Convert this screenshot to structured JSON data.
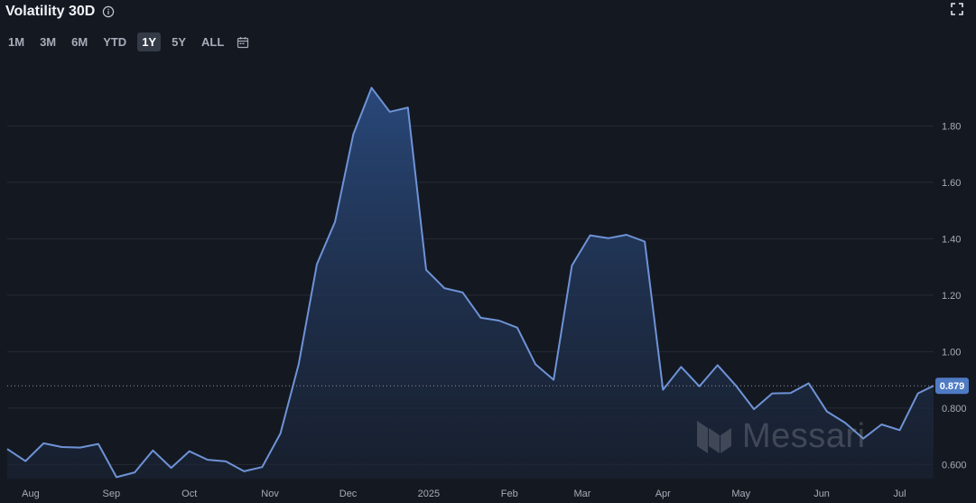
{
  "header": {
    "title": "Volatility 30D",
    "info_icon": "info-circle-icon",
    "expand_icon": "fullscreen-expand-icon"
  },
  "ranges": {
    "items": [
      "1M",
      "3M",
      "6M",
      "YTD",
      "1Y",
      "5Y",
      "ALL"
    ],
    "active": "1Y",
    "calendar_icon": "calendar-icon"
  },
  "watermark": {
    "text": "Messari"
  },
  "colors": {
    "background": "#141821",
    "line": "#6e93d6",
    "fill_top": "#2a4a7e",
    "badge": "#4f7bc4",
    "grid": "#262b36"
  },
  "chart_data": {
    "type": "area",
    "title": "Volatility 30D",
    "xlabel": "",
    "ylabel": "",
    "ylim": [
      0.55,
      1.99
    ],
    "y_ticks": [
      0.6,
      0.8,
      1.0,
      1.2,
      1.4,
      1.6,
      1.8
    ],
    "y_tick_labels": [
      "0.600",
      "0.800",
      "1.00",
      "1.20",
      "1.40",
      "1.60",
      "1.80"
    ],
    "x_tick_labels": [
      "Aug",
      "Sep",
      "Oct",
      "Nov",
      "Dec",
      "2025",
      "Feb",
      "Mar",
      "Apr",
      "May",
      "Jun",
      "Jul"
    ],
    "x_tick_dates": [
      "2024-08-01",
      "2024-09-01",
      "2024-10-01",
      "2024-11-01",
      "2024-12-01",
      "2025-01-01",
      "2025-02-01",
      "2025-03-01",
      "2025-04-01",
      "2025-05-01",
      "2025-06-01",
      "2025-07-01"
    ],
    "xlim": [
      "2024-07-23",
      "2025-07-14"
    ],
    "grid": true,
    "last_value": 0.879,
    "last_value_label": "0.879",
    "series": [
      {
        "x": [
          "2024-07-23",
          "2024-07-30",
          "2024-08-06",
          "2024-08-13",
          "2024-08-20",
          "2024-08-27",
          "2024-09-03",
          "2024-09-10",
          "2024-09-17",
          "2024-09-24",
          "2024-10-01",
          "2024-10-08",
          "2024-10-15",
          "2024-10-22",
          "2024-10-29",
          "2024-11-05",
          "2024-11-12",
          "2024-11-19",
          "2024-11-26",
          "2024-12-03",
          "2024-12-10",
          "2024-12-17",
          "2024-12-24",
          "2024-12-31",
          "2025-01-07",
          "2025-01-14",
          "2025-01-21",
          "2025-01-28",
          "2025-02-04",
          "2025-02-11",
          "2025-02-18",
          "2025-02-25",
          "2025-03-04",
          "2025-03-11",
          "2025-03-18",
          "2025-03-25",
          "2025-04-01",
          "2025-04-08",
          "2025-04-15",
          "2025-04-22",
          "2025-04-29",
          "2025-05-06",
          "2025-05-13",
          "2025-05-20",
          "2025-05-27",
          "2025-06-03",
          "2025-06-10",
          "2025-06-17",
          "2025-06-24",
          "2025-07-01",
          "2025-07-08",
          "2025-07-14"
        ],
        "values": [
          0.655,
          0.612,
          0.675,
          0.662,
          0.66,
          0.673,
          0.555,
          0.572,
          0.65,
          0.588,
          0.647,
          0.617,
          0.611,
          0.576,
          0.591,
          0.71,
          0.955,
          1.31,
          1.46,
          1.77,
          1.935,
          1.85,
          1.865,
          1.29,
          1.225,
          1.21,
          1.12,
          1.11,
          1.085,
          0.955,
          0.9,
          1.305,
          1.412,
          1.402,
          1.414,
          1.39,
          0.865,
          0.946,
          0.877,
          0.952,
          0.88,
          0.796,
          0.852,
          0.853,
          0.888,
          0.788,
          0.748,
          0.692,
          0.742,
          0.722,
          0.852,
          0.879
        ]
      }
    ]
  }
}
